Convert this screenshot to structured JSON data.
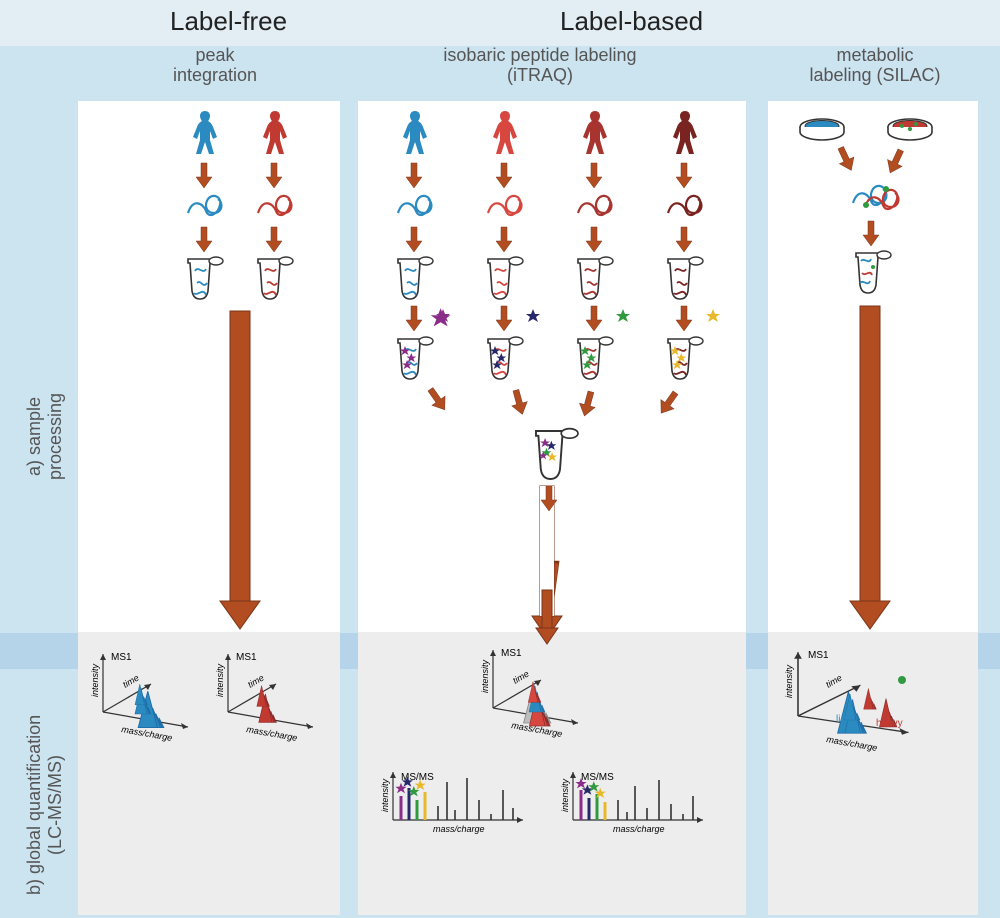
{
  "title_left": "Label-free",
  "title_right": "Label-based",
  "col1_sub": "peak\nintegration",
  "col2_sub": "isobaric peptide labeling\n(iTRAQ)",
  "col3_sub": "metabolic\nlabeling (SILAC)",
  "row_a": "a) sample\nprocessing",
  "row_b": "b) global quantification\n(LC-MS/MS)",
  "ms1": "MS1",
  "msms": "MS/MS",
  "ax_intensity": "intensity",
  "ax_time": "time",
  "ax_mz": "mass/charge",
  "light": "light",
  "heavy": "heavy",
  "colors": {
    "bg_light": "#e3eef4",
    "bg_mid": "#cce3f0",
    "arrow": "#a0401c",
    "arrow_fill": "#b24d22",
    "blue": "#2b8bc0",
    "blue_dark": "#1e6da8",
    "red": "#c03a32",
    "red2": "#d8473f",
    "red3": "#8a2a28",
    "red4": "#6b1f1d",
    "green": "#2f9a3f",
    "purple": "#8a2d8a",
    "navy": "#27286b",
    "yellow": "#e8b92a",
    "gray": "#333333",
    "lightgray": "#ededed"
  }
}
